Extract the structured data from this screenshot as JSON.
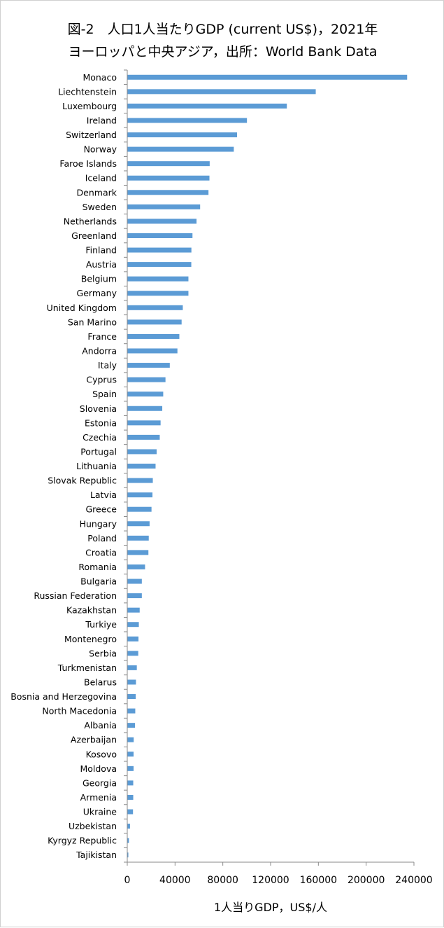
{
  "chart_data": {
    "type": "bar",
    "orientation": "horizontal",
    "title": "図-2　人口1人当たりGDP (current US$)，2021年",
    "subtitle": "ヨーロッパと中央アジア，出所：World Bank Data",
    "xlabel": "1人当りGDP，US$/人",
    "ylabel": "",
    "xlim": [
      0,
      240000
    ],
    "xticks": [
      "0",
      "40000",
      "80000",
      "120000",
      "160000",
      "200000",
      "240000"
    ],
    "grid": false,
    "bar_color": "#5b9bd5",
    "categories": [
      "Monaco",
      "Liechtenstein",
      "Luxembourg",
      "Ireland",
      "Switzerland",
      "Norway",
      "Faroe Islands",
      "Iceland",
      "Denmark",
      "Sweden",
      "Netherlands",
      "Greenland",
      "Finland",
      "Austria",
      "Belgium",
      "Germany",
      "United Kingdom",
      "San Marino",
      "France",
      "Andorra",
      "Italy",
      "Cyprus",
      "Spain",
      "Slovenia",
      "Estonia",
      "Czechia",
      "Portugal",
      "Lithuania",
      "Slovak Republic",
      "Latvia",
      "Greece",
      "Hungary",
      "Poland",
      "Croatia",
      "Romania",
      "Bulgaria",
      "Russian Federation",
      "Kazakhstan",
      "Turkiye",
      "Montenegro",
      "Serbia",
      "Turkmenistan",
      "Belarus",
      "Bosnia and Herzegovina",
      "North Macedonia",
      "Albania",
      "Azerbaijan",
      "Kosovo",
      "Moldova",
      "Georgia",
      "Armenia",
      "Ukraine",
      "Uzbekistan",
      "Kyrgyz Republic",
      "Tajikistan"
    ],
    "values": [
      234300,
      157800,
      133600,
      100200,
      91900,
      89200,
      69000,
      68800,
      68000,
      61000,
      58000,
      54600,
      53700,
      53600,
      51200,
      51200,
      46500,
      45500,
      43600,
      42000,
      35600,
      32000,
      30100,
      29300,
      27900,
      27200,
      24600,
      23700,
      21400,
      21100,
      20300,
      18700,
      18000,
      17700,
      14900,
      12200,
      12200,
      10400,
      9700,
      9400,
      9200,
      8000,
      7300,
      7100,
      6700,
      6500,
      5400,
      5300,
      5300,
      5000,
      5000,
      4800,
      2300,
      1400,
      900
    ]
  }
}
